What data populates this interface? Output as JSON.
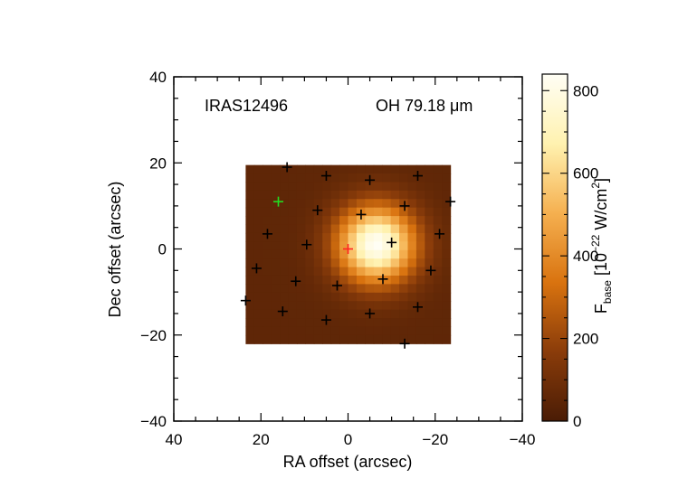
{
  "chart_data": {
    "type": "heatmap",
    "annotations": {
      "source": "IRAS12496",
      "line": "OH 79.18 μm"
    },
    "xlabel": "RA offset (arcsec)",
    "ylabel": "Dec offset (arcsec)",
    "xlim": [
      40,
      -40
    ],
    "ylim": [
      -40,
      40
    ],
    "x_ticks": [
      40,
      20,
      0,
      -20,
      -40
    ],
    "y_ticks": [
      -40,
      -20,
      0,
      20,
      40
    ],
    "map_extent": {
      "ra": [
        23.5,
        -23.5
      ],
      "dec": [
        -22,
        19.5
      ]
    },
    "peak": {
      "ra": -6.5,
      "dec": 1.0,
      "value": 840,
      "sigma": 6.2
    },
    "background_value": 55,
    "colorbar": {
      "label_main": "F",
      "label_sub": "base",
      "label_units": " [10",
      "label_exp": "−22",
      "label_rest": " W/cm",
      "label_exp2": "2",
      "label_close": "]",
      "range": [
        0,
        840
      ],
      "ticks": [
        0,
        200,
        400,
        600,
        800
      ],
      "colors": [
        "#4a1c05",
        "#8a3c0a",
        "#d9730f",
        "#f5b050",
        "#fff2b0",
        "#fffef5"
      ]
    },
    "markers": {
      "black": [
        [
          14,
          19
        ],
        [
          5,
          17
        ],
        [
          -5,
          16
        ],
        [
          -16,
          17
        ],
        [
          -23.5,
          11
        ],
        [
          16,
          11
        ],
        [
          7,
          9
        ],
        [
          -3,
          8
        ],
        [
          -13,
          10
        ],
        [
          18.5,
          3.5
        ],
        [
          9.5,
          1
        ],
        [
          -10,
          1.5
        ],
        [
          -21,
          3.5
        ],
        [
          21,
          -4.5
        ],
        [
          12,
          -7.5
        ],
        [
          2.5,
          -8.5
        ],
        [
          -8,
          -7
        ],
        [
          -19,
          -5
        ],
        [
          23.5,
          -12
        ],
        [
          15,
          -14.5
        ],
        [
          5,
          -16.5
        ],
        [
          -5,
          -15
        ],
        [
          -16,
          -13.5
        ],
        [
          -13,
          -22
        ]
      ],
      "green": [
        [
          16,
          11
        ]
      ],
      "red": [
        [
          0,
          0
        ]
      ]
    }
  }
}
